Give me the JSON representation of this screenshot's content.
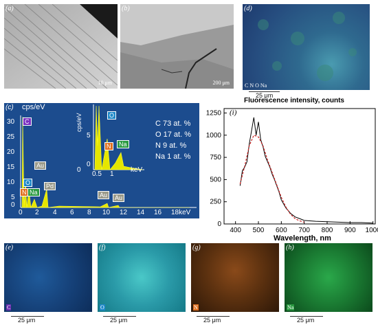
{
  "panels": {
    "a": {
      "label": "(a)",
      "scale": "10 μm"
    },
    "b": {
      "label": "(b)",
      "scale": "200 μm"
    },
    "d": {
      "label": "(d)",
      "elements": "C N O Na",
      "scale": "25 μm"
    },
    "c": {
      "label": "(c)",
      "yunit": "cps/eV",
      "xunit": "keV",
      "composition": [
        "C 73 at. %",
        "O 17 at. %",
        "N 9 at. %",
        "Na 1 at. %"
      ],
      "yticks": [
        "30",
        "25",
        "20",
        "15",
        "10",
        "5",
        "0"
      ],
      "xticks": [
        "0",
        "2",
        "4",
        "6",
        "8",
        "10",
        "12",
        "14",
        "16",
        "18keV"
      ],
      "peaks": [
        "C",
        "O",
        "N",
        "Na",
        "Au",
        "Pd",
        "Au",
        "Au"
      ],
      "inset": {
        "yunit": "cps/eV",
        "xunit": "keV",
        "yticks": [
          "5",
          "0"
        ],
        "xticks": [
          "0.5",
          "1"
        ],
        "zero": "0",
        "peaks": [
          "O",
          "N",
          "Na"
        ]
      }
    },
    "i": {
      "label": "(i)"
    },
    "e": {
      "label": "(e)",
      "element": "C",
      "scale": "25 μm"
    },
    "f": {
      "label": "(f)",
      "element": "O",
      "scale": "25 μm"
    },
    "g": {
      "label": "(g)",
      "element": "N",
      "scale": "25 μm"
    },
    "h": {
      "label": "(h)",
      "element": "Na",
      "scale": "25 μm"
    }
  },
  "chart_data": {
    "type": "line",
    "title": "Fluorescence intensity, counts",
    "xlabel": "Wavelength, nm",
    "ylabel": "",
    "xlim": [
      350,
      1010
    ],
    "ylim": [
      0,
      1300
    ],
    "xticks": [
      400,
      500,
      600,
      700,
      800,
      900,
      1000
    ],
    "yticks": [
      0,
      250,
      500,
      750,
      1000,
      1250
    ],
    "grid": false,
    "series": [
      {
        "color": "#000000",
        "x": [
          420,
          430,
          440,
          450,
          460,
          470,
          480,
          490,
          500,
          510,
          520,
          530,
          540,
          550,
          560,
          570,
          580,
          590,
          600,
          620,
          640,
          660,
          680,
          700,
          750,
          800,
          850,
          900,
          950,
          1000
        ],
        "y": [
          430,
          600,
          640,
          700,
          900,
          1050,
          1200,
          1000,
          1150,
          950,
          870,
          760,
          700,
          640,
          560,
          500,
          430,
          360,
          270,
          180,
          120,
          80,
          60,
          40,
          30,
          25,
          20,
          15,
          15,
          10
        ]
      },
      {
        "color": "#cc2222",
        "x": [
          420,
          440,
          460,
          480,
          500,
          520,
          540,
          560,
          580,
          600,
          620,
          640,
          660,
          680,
          700
        ],
        "y": [
          450,
          650,
          880,
          1000,
          980,
          880,
          720,
          580,
          440,
          300,
          190,
          110,
          60,
          35,
          20
        ]
      }
    ]
  }
}
